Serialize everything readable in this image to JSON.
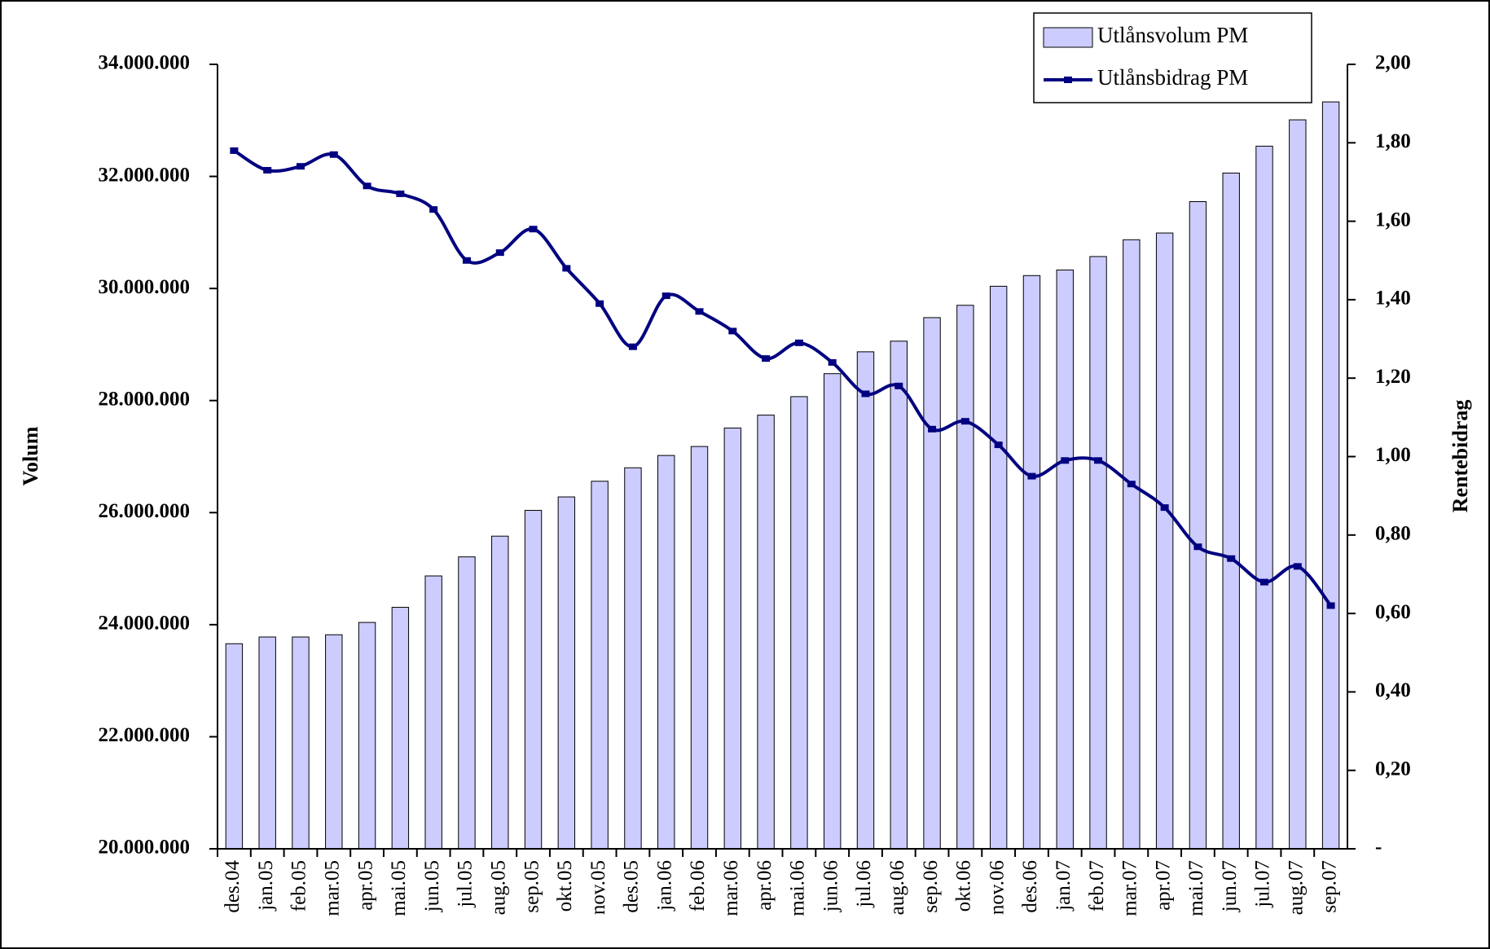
{
  "chart_data": {
    "type": "combo",
    "ylabel": "Volum",
    "y2label": "Rentebidrag",
    "categories": [
      "des.04",
      "jan.05",
      "feb.05",
      "mar.05",
      "apr.05",
      "mai.05",
      "jun.05",
      "jul.05",
      "aug.05",
      "sep.05",
      "okt.05",
      "nov.05",
      "des.05",
      "jan.06",
      "feb.06",
      "mar.06",
      "apr.06",
      "mai.06",
      "jun.06",
      "jul.06",
      "aug.06",
      "sep.06",
      "okt.06",
      "nov.06",
      "des.06",
      "jan.07",
      "feb.07",
      "mar.07",
      "apr.07",
      "mai.07",
      "jun.07",
      "jul.07",
      "aug.07",
      "sep.07"
    ],
    "series": [
      {
        "name": "Utlånsvolum PM",
        "type": "bar",
        "color": "#ccccff",
        "values": [
          23660000,
          23780000,
          23780000,
          23820000,
          24040000,
          24310000,
          24870000,
          25210000,
          25580000,
          26040000,
          26280000,
          26560000,
          26800000,
          27020000,
          27180000,
          27510000,
          27740000,
          28070000,
          28480000,
          28870000,
          29060000,
          29480000,
          29700000,
          30040000,
          30230000,
          30330000,
          30570000,
          30870000,
          30990000,
          31550000,
          32060000,
          32540000,
          33010000,
          33330000
        ]
      },
      {
        "name": "Utlånsbidrag PM",
        "type": "line",
        "axis": "y2",
        "color": "#000080",
        "values": [
          1.78,
          1.73,
          1.74,
          1.77,
          1.69,
          1.67,
          1.63,
          1.5,
          1.52,
          1.58,
          1.48,
          1.39,
          1.28,
          1.41,
          1.37,
          1.32,
          1.25,
          1.29,
          1.24,
          1.16,
          1.18,
          1.07,
          1.09,
          1.03,
          0.95,
          0.99,
          0.99,
          0.93,
          0.87,
          0.77,
          0.74,
          0.68,
          0.72,
          0.62
        ]
      }
    ],
    "ylim": [
      20000000,
      34000000
    ],
    "yticks": [
      {
        "value": 20000000,
        "label": "20.000.000"
      },
      {
        "value": 22000000,
        "label": "22.000.000"
      },
      {
        "value": 24000000,
        "label": "24.000.000"
      },
      {
        "value": 26000000,
        "label": "26.000.000"
      },
      {
        "value": 28000000,
        "label": "28.000.000"
      },
      {
        "value": 30000000,
        "label": "30.000.000"
      },
      {
        "value": 32000000,
        "label": "32.000.000"
      },
      {
        "value": 34000000,
        "label": "34.000.000"
      }
    ],
    "y2lim": [
      0,
      2
    ],
    "y2ticks": [
      {
        "value": 0,
        "label": "-"
      },
      {
        "value": 0.2,
        "label": "0,20"
      },
      {
        "value": 0.4,
        "label": "0,40"
      },
      {
        "value": 0.6,
        "label": "0,60"
      },
      {
        "value": 0.8,
        "label": "0,80"
      },
      {
        "value": 1,
        "label": "1,00"
      },
      {
        "value": 1.2,
        "label": "1,20"
      },
      {
        "value": 1.4,
        "label": "1,40"
      },
      {
        "value": 1.6,
        "label": "1,60"
      },
      {
        "value": 1.8,
        "label": "1,80"
      },
      {
        "value": 2,
        "label": "2,00"
      }
    ],
    "grid": false,
    "legend": "top-right"
  }
}
